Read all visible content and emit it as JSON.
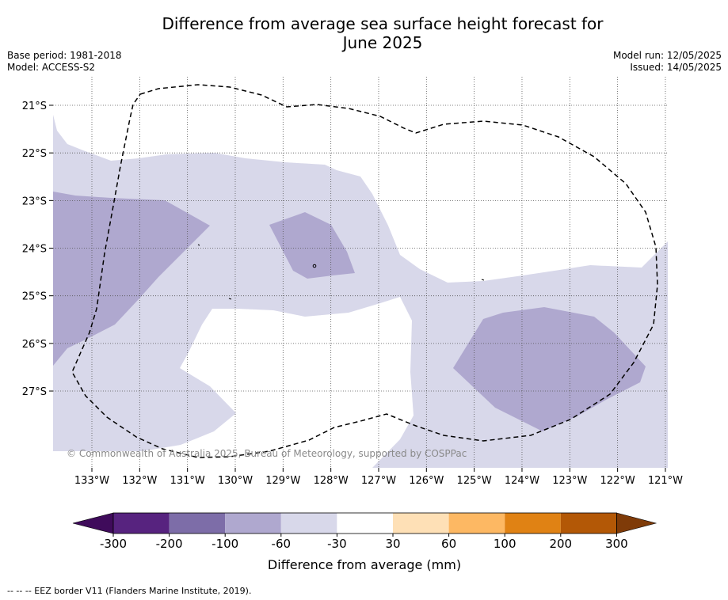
{
  "title_line1": "Difference from average sea surface height forecast for",
  "title_line2": "June 2025",
  "base_period": "Base period: 1981-2018",
  "model": "Model: ACCESS-S2",
  "model_run": "Model run: 12/05/2025",
  "issued": "Issued: 14/05/2025",
  "lat_labels": [
    "21°S",
    "22°S",
    "23°S",
    "24°S",
    "25°S",
    "26°S",
    "27°S"
  ],
  "lon_labels": [
    "133°W",
    "132°W",
    "131°W",
    "130°W",
    "129°W",
    "128°W",
    "127°W",
    "126°W",
    "125°W",
    "124°W",
    "123°W",
    "122°W",
    "121°W"
  ],
  "copyright": "© Commonwealth of Australia 2025, Bureau of Meteorology, supported by COSPPac",
  "colorbar": {
    "ticks": [
      "-300",
      "-200",
      "-100",
      "-60",
      "-30",
      "30",
      "60",
      "100",
      "200",
      "300"
    ],
    "colors": [
      "#3f0b5b",
      "#57237f",
      "#7d6da8",
      "#afa8cf",
      "#d8d8ea",
      "#ffffff",
      "#fee0b6",
      "#fdb863",
      "#e08214",
      "#b35806",
      "#7f3b08"
    ],
    "label": "Difference from average (mm)"
  },
  "footer": "--  --  -- EEZ border V11 (Flanders Marine Institute, 2019)."
}
